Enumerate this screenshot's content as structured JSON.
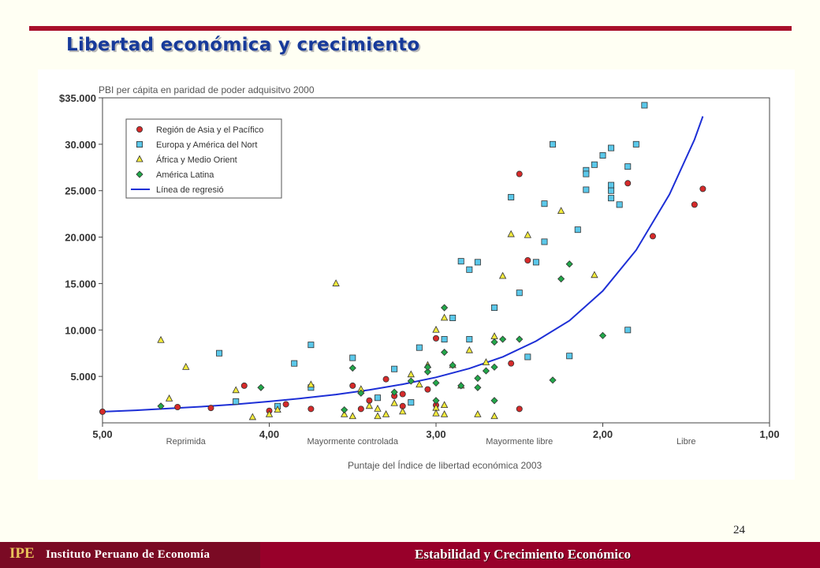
{
  "slide": {
    "title": "Libertad económica y crecimiento",
    "page_number": "24",
    "footer": {
      "abbr": "IPE",
      "org": "Instituto Peruano de Economía",
      "topic": "Estabilidad y Crecimiento Económico"
    }
  },
  "colors": {
    "rule": "#a8102a",
    "title": "#173a9a",
    "asia": "#d62a2a",
    "europe": "#5bc8ea",
    "africa": "#f2ea3c",
    "latam": "#22a84a",
    "regression": "#1d2fd6"
  },
  "chart_data": {
    "type": "scatter",
    "title": "PBI per cápita en paridad de poder adquisitvo 2000",
    "xlabel": "Puntaje del Índice de libertad económica 2003",
    "xlim": [
      5,
      1
    ],
    "ylim": [
      0,
      35000
    ],
    "x_reversed": true,
    "x_ticks": [
      "5,00",
      "4,00",
      "3,00",
      "2,00",
      "1,00"
    ],
    "y_ticks": [
      "5.000",
      "10.000",
      "15.000",
      "20.000",
      "25.000",
      "30.000",
      "$35.000"
    ],
    "y_tick_values": [
      5000,
      10000,
      15000,
      20000,
      25000,
      30000,
      35000
    ],
    "x_categories": [
      {
        "label": "Reprimida",
        "x": 4.5
      },
      {
        "label": "Mayormente controlada",
        "x": 3.5
      },
      {
        "label": "Mayormente libre",
        "x": 2.5
      },
      {
        "label": "Libre",
        "x": 1.5
      }
    ],
    "legend_position": "top-left",
    "grid": false,
    "series": [
      {
        "name": "Región de Asia y el Pacífico",
        "marker": "circle",
        "points": [
          [
            5.0,
            1200
          ],
          [
            4.55,
            1700
          ],
          [
            4.35,
            1600
          ],
          [
            4.15,
            4000
          ],
          [
            4.0,
            1300
          ],
          [
            3.9,
            2000
          ],
          [
            3.75,
            1500
          ],
          [
            3.5,
            4000
          ],
          [
            3.45,
            1500
          ],
          [
            3.4,
            2400
          ],
          [
            3.3,
            4700
          ],
          [
            3.25,
            2900
          ],
          [
            3.2,
            3100
          ],
          [
            3.2,
            1800
          ],
          [
            3.05,
            3600
          ],
          [
            3.0,
            9100
          ],
          [
            3.0,
            1900
          ],
          [
            2.45,
            17500
          ],
          [
            2.55,
            6400
          ],
          [
            2.5,
            26800
          ],
          [
            2.5,
            1500
          ],
          [
            1.85,
            25800
          ],
          [
            1.7,
            20100
          ],
          [
            1.45,
            23500
          ],
          [
            1.4,
            25200
          ]
        ]
      },
      {
        "name": "Europa y América del Nort",
        "marker": "square",
        "points": [
          [
            4.3,
            7500
          ],
          [
            4.2,
            2300
          ],
          [
            3.95,
            1800
          ],
          [
            3.85,
            6400
          ],
          [
            3.75,
            8400
          ],
          [
            3.75,
            3800
          ],
          [
            3.5,
            7000
          ],
          [
            3.35,
            2700
          ],
          [
            3.25,
            5800
          ],
          [
            3.15,
            2200
          ],
          [
            3.1,
            8100
          ],
          [
            2.95,
            9000
          ],
          [
            2.9,
            11300
          ],
          [
            2.85,
            17400
          ],
          [
            2.8,
            16500
          ],
          [
            2.8,
            9000
          ],
          [
            2.75,
            17300
          ],
          [
            2.65,
            12400
          ],
          [
            2.55,
            24300
          ],
          [
            2.5,
            14000
          ],
          [
            2.45,
            7100
          ],
          [
            2.4,
            17300
          ],
          [
            2.35,
            23600
          ],
          [
            2.35,
            19500
          ],
          [
            2.3,
            30000
          ],
          [
            2.2,
            7200
          ],
          [
            2.15,
            20800
          ],
          [
            2.1,
            27200
          ],
          [
            2.1,
            26800
          ],
          [
            2.1,
            25100
          ],
          [
            2.05,
            27800
          ],
          [
            2.0,
            28800
          ],
          [
            1.95,
            29600
          ],
          [
            1.95,
            25600
          ],
          [
            1.95,
            25000
          ],
          [
            1.95,
            24200
          ],
          [
            1.9,
            23500
          ],
          [
            1.85,
            27600
          ],
          [
            1.8,
            30000
          ],
          [
            1.75,
            34200
          ],
          [
            1.85,
            10000
          ]
        ]
      },
      {
        "name": "África y Medio Orient",
        "marker": "triangle",
        "points": [
          [
            4.65,
            8900
          ],
          [
            4.6,
            2600
          ],
          [
            4.5,
            6000
          ],
          [
            4.2,
            3500
          ],
          [
            4.1,
            600
          ],
          [
            4.0,
            900
          ],
          [
            3.95,
            1400
          ],
          [
            3.75,
            4100
          ],
          [
            3.6,
            15000
          ],
          [
            3.55,
            900
          ],
          [
            3.5,
            700
          ],
          [
            3.45,
            3600
          ],
          [
            3.4,
            1800
          ],
          [
            3.35,
            1500
          ],
          [
            3.35,
            700
          ],
          [
            3.3,
            900
          ],
          [
            3.25,
            2100
          ],
          [
            3.2,
            1200
          ],
          [
            3.15,
            5200
          ],
          [
            3.1,
            4100
          ],
          [
            3.05,
            6200
          ],
          [
            3.0,
            1600
          ],
          [
            3.0,
            1000
          ],
          [
            2.95,
            1900
          ],
          [
            2.95,
            900
          ],
          [
            2.9,
            6200
          ],
          [
            2.85,
            4000
          ],
          [
            3.0,
            10000
          ],
          [
            2.95,
            11300
          ],
          [
            2.8,
            7800
          ],
          [
            2.75,
            900
          ],
          [
            2.7,
            6500
          ],
          [
            2.65,
            9300
          ],
          [
            2.65,
            700
          ],
          [
            2.6,
            15800
          ],
          [
            2.55,
            20300
          ],
          [
            2.45,
            20200
          ],
          [
            2.25,
            22800
          ],
          [
            2.05,
            15900
          ]
        ]
      },
      {
        "name": "América Latina",
        "marker": "diamond",
        "points": [
          [
            4.65,
            1800
          ],
          [
            4.05,
            3800
          ],
          [
            3.55,
            1400
          ],
          [
            3.5,
            5900
          ],
          [
            3.45,
            3200
          ],
          [
            3.25,
            3300
          ],
          [
            3.15,
            4500
          ],
          [
            3.05,
            5500
          ],
          [
            3.0,
            4300
          ],
          [
            3.0,
            2400
          ],
          [
            2.95,
            12400
          ],
          [
            2.95,
            7600
          ],
          [
            2.9,
            6200
          ],
          [
            2.85,
            4000
          ],
          [
            2.75,
            4800
          ],
          [
            2.75,
            3800
          ],
          [
            2.7,
            5600
          ],
          [
            2.65,
            8700
          ],
          [
            2.65,
            6000
          ],
          [
            2.65,
            2400
          ],
          [
            2.6,
            9000
          ],
          [
            2.5,
            9000
          ],
          [
            2.3,
            4600
          ],
          [
            2.25,
            15500
          ],
          [
            2.2,
            17100
          ],
          [
            2.0,
            9400
          ],
          [
            3.05,
            6000
          ]
        ]
      },
      {
        "name": "Línea de regresió",
        "marker": "line",
        "points": [
          [
            5.0,
            1200
          ],
          [
            4.8,
            1350
          ],
          [
            4.6,
            1550
          ],
          [
            4.4,
            1750
          ],
          [
            4.2,
            2000
          ],
          [
            4.0,
            2300
          ],
          [
            3.8,
            2650
          ],
          [
            3.6,
            3050
          ],
          [
            3.4,
            3550
          ],
          [
            3.2,
            4150
          ],
          [
            3.0,
            4900
          ],
          [
            2.8,
            5850
          ],
          [
            2.6,
            7100
          ],
          [
            2.4,
            8800
          ],
          [
            2.2,
            11000
          ],
          [
            2.0,
            14200
          ],
          [
            1.8,
            18600
          ],
          [
            1.6,
            24600
          ],
          [
            1.45,
            30500
          ],
          [
            1.4,
            33000
          ]
        ]
      }
    ]
  }
}
